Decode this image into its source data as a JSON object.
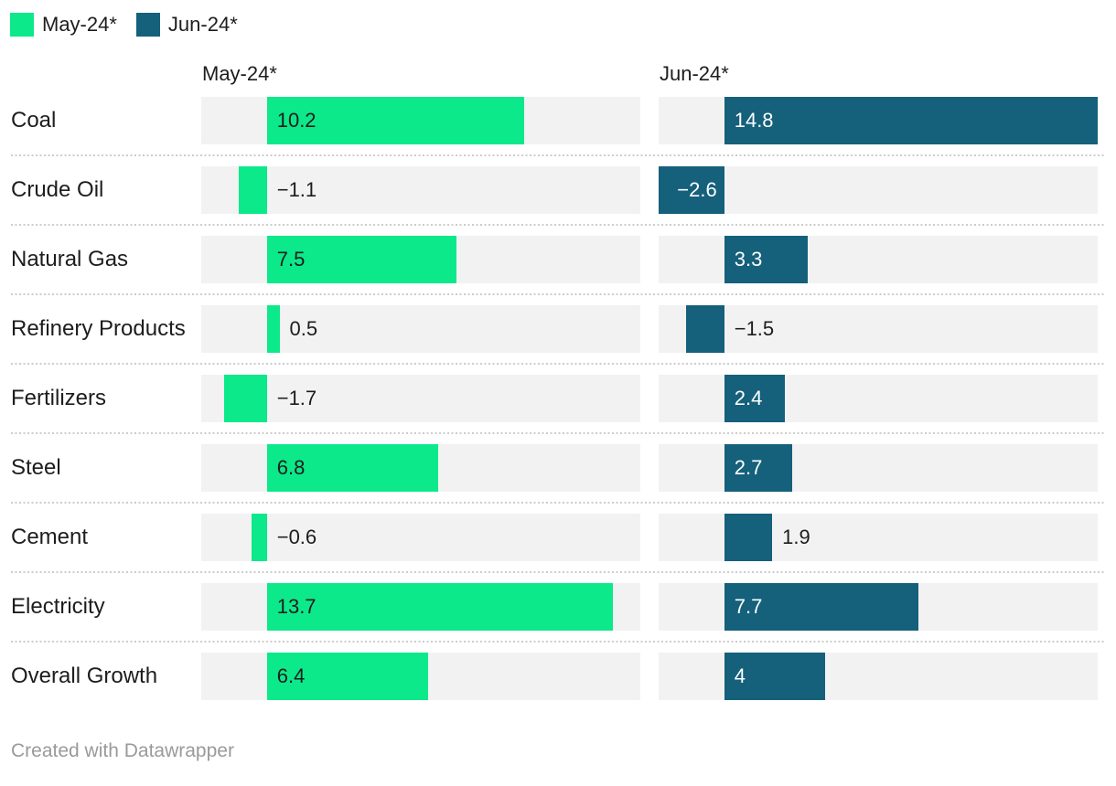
{
  "legend": {
    "items": [
      {
        "label": "May-24*",
        "color": "#0ce98a"
      },
      {
        "label": "Jun-24*",
        "color": "#15607b"
      }
    ]
  },
  "column_headers": {
    "may": "May-24*",
    "jun": "Jun-24*"
  },
  "chart_data": {
    "type": "bar",
    "orientation": "horizontal",
    "layout": "split-panel-by-series",
    "categories": [
      "Coal",
      "Crude Oil",
      "Natural Gas",
      "Refinery Products",
      "Fertilizers",
      "Steel",
      "Cement",
      "Electricity",
      "Overall Growth"
    ],
    "series": [
      {
        "name": "May-24*",
        "color": "#0ce98a",
        "inside_label_color": "#1d1d1d",
        "values": [
          10.2,
          -1.1,
          7.5,
          0.5,
          -1.7,
          6.8,
          -0.6,
          13.7,
          6.4
        ],
        "labels": [
          "10.2",
          "−1.1",
          "7.5",
          "0.5",
          "−1.7",
          "6.8",
          "−0.6",
          "13.7",
          "6.4"
        ]
      },
      {
        "name": "Jun-24*",
        "color": "#15607b",
        "inside_label_color": "#ffffff",
        "values": [
          14.8,
          -2.6,
          3.3,
          -1.5,
          2.4,
          2.7,
          1.9,
          7.7,
          4
        ],
        "labels": [
          "14.8",
          "−2.6",
          "3.3",
          "−1.5",
          "2.4",
          "2.7",
          "1.9",
          "7.7",
          "4"
        ]
      }
    ],
    "axis": {
      "min": -2.6,
      "max": 14.8
    },
    "grid": false,
    "legend_position": "top-left",
    "title": "",
    "xlabel": "",
    "ylabel": ""
  },
  "colors": {
    "background": "#ffffff",
    "track": "#f2f2f2",
    "text": "#1d1d1d",
    "separator": "#cccccc",
    "footer_text": "#9a9a9a"
  },
  "footer": {
    "text": "Created with Datawrapper"
  }
}
